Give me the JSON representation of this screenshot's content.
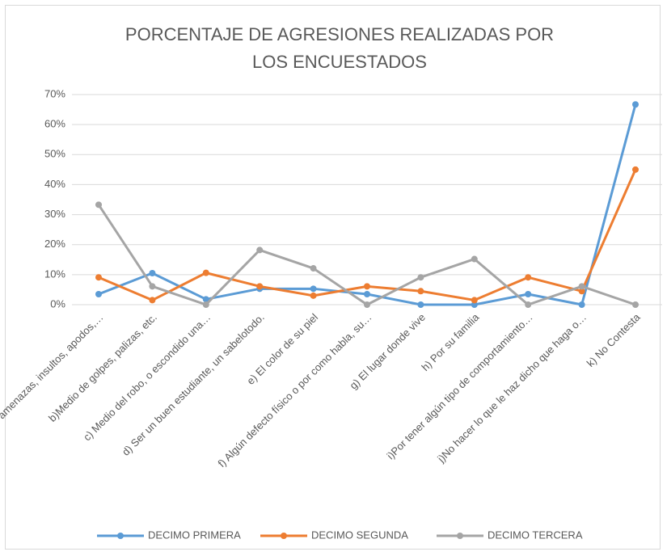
{
  "chart_data": {
    "type": "line",
    "title": "PORCENTAJE DE AGRESIONES REALIZADAS POR LOS ENCUESTADOS",
    "categories": [
      "a) Medio de amenazas, insultos, apodos,…",
      "b)Medio de golpes, palizas, etc.",
      "c) Medio del robo, o escondido una…",
      "d) Ser un buen estudiante, un sabelotodo.",
      "e) El color de su piel",
      "f) Algún defecto físico o por como habla, su…",
      "g) El lugar donde vive",
      "h) Por su familia",
      "i)Por tener algún tipo de comportamiento…",
      "j)No hacer lo que le haz dicho que haga o…",
      "k) No Contesta"
    ],
    "series": [
      {
        "name": "DECIMO PRIMERA",
        "color": "#5b9bd5",
        "values": [
          3.5,
          10.5,
          1.8,
          5.3,
          5.3,
          3.5,
          0,
          0,
          3.5,
          0,
          66.7
        ]
      },
      {
        "name": "DECIMO SEGUNDA",
        "color": "#ed7d31",
        "values": [
          9.1,
          1.5,
          10.6,
          6.1,
          3.0,
          6.1,
          4.5,
          1.5,
          9.1,
          4.5,
          45.0
        ]
      },
      {
        "name": "DECIMO TERCERA",
        "color": "#a5a5a5",
        "values": [
          33.3,
          6.1,
          0,
          18.2,
          12.1,
          0,
          9.1,
          15.2,
          0,
          6.1,
          0
        ]
      }
    ],
    "ylim": [
      0,
      70
    ],
    "yticks": [
      {
        "value": 0,
        "label": "0%"
      },
      {
        "value": 10,
        "label": "10%"
      },
      {
        "value": 20,
        "label": "20%"
      },
      {
        "value": 30,
        "label": "30%"
      },
      {
        "value": 40,
        "label": "40%"
      },
      {
        "value": 50,
        "label": "50%"
      },
      {
        "value": 60,
        "label": "60%"
      },
      {
        "value": 70,
        "label": "70%"
      }
    ],
    "grid": true,
    "legend": "bottom"
  }
}
